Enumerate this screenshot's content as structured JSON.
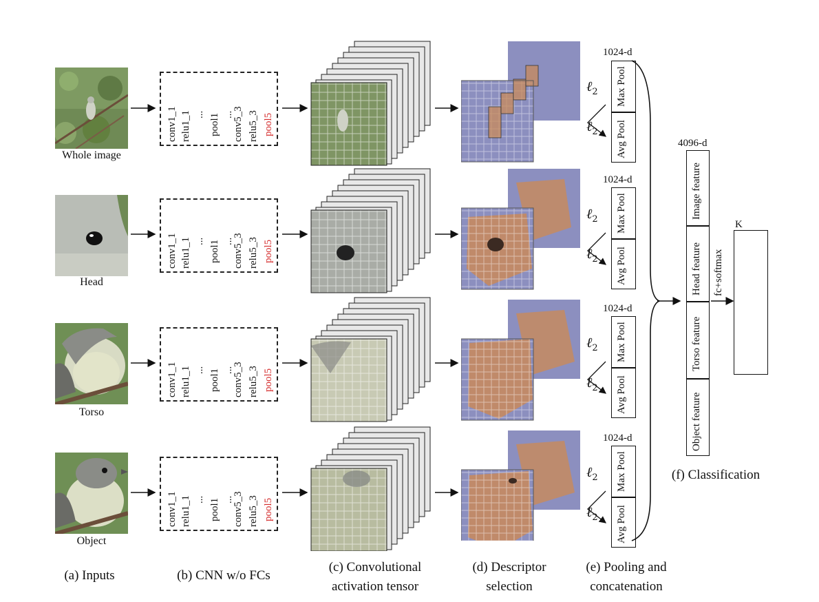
{
  "inputs": [
    {
      "label": "Whole image"
    },
    {
      "label": "Head"
    },
    {
      "label": "Torso"
    },
    {
      "label": "Object"
    }
  ],
  "cnn_layers": [
    "conv1_1",
    "relu1_1",
    "...",
    "pool1",
    "...",
    "conv5_3",
    "relu5_3",
    "pool5"
  ],
  "pool_dim_label": "1024-d",
  "pool_boxes": {
    "max": "Max Pool",
    "avg": "Avg Pool"
  },
  "l2": {
    "symbol": "ℓ",
    "sub": "2"
  },
  "features": {
    "dim_label": "4096-d",
    "items": [
      "Image feature",
      "Head feature",
      "Torso feature",
      "Object feature"
    ]
  },
  "fc_label": "fc+softmax",
  "k_label": "K",
  "stage_labels": {
    "a": "(a) Inputs",
    "b": "(b) CNN w/o FCs",
    "c1": "(c) Convolutional",
    "c2": "activation tensor",
    "d1": "(d) Descriptor",
    "d2": "selection",
    "e1": "(e) Pooling and",
    "e2": "concatenation",
    "f": "(f) Classification"
  },
  "colors": {
    "accent_red": "#d42a2a",
    "selection_orange": "#c98a5a",
    "bg_purple": "#8c8fbf"
  }
}
